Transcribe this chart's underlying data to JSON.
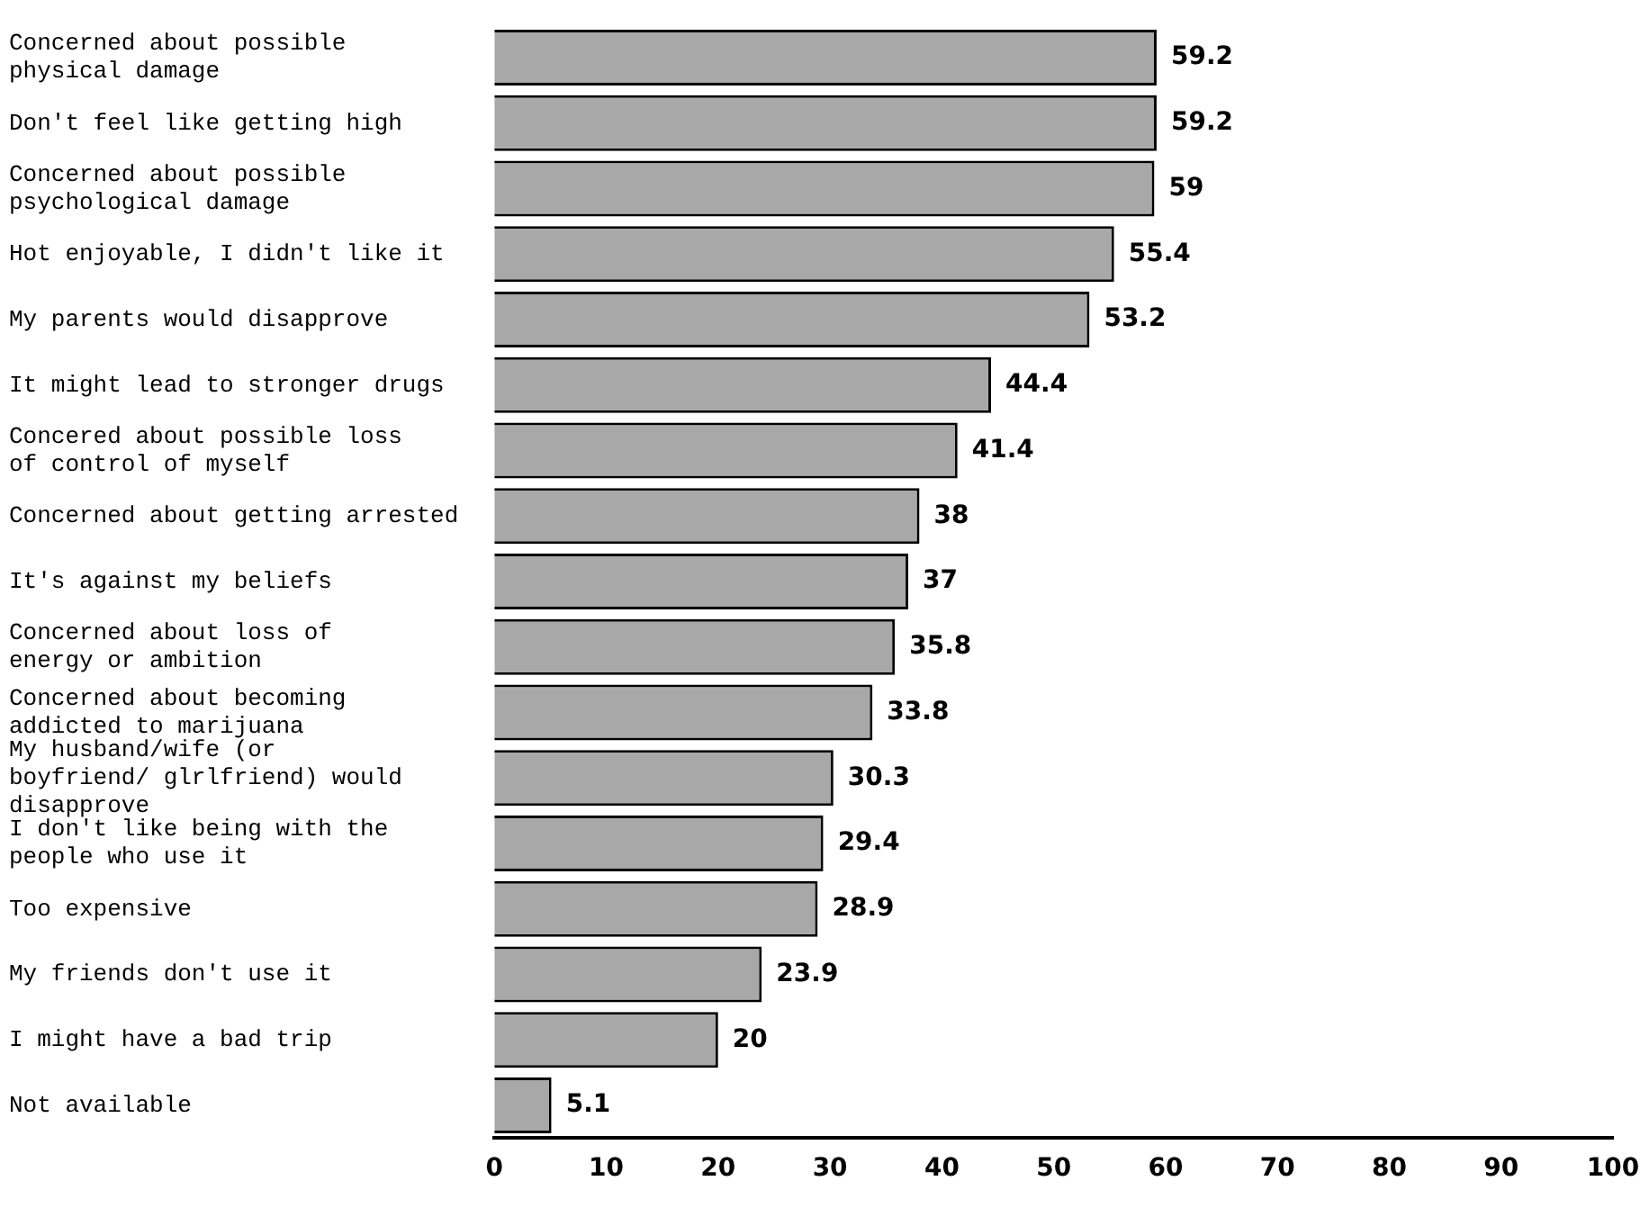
{
  "chart_data": {
    "type": "bar",
    "orientation": "horizontal",
    "categories": [
      "Concerned about possible physical damage",
      "Don't feel like getting high",
      "Concerned about possible psychological damage",
      "Hot enjoyable, I didn't like it",
      "My parents would disapprove",
      "It might lead to stronger drugs",
      "Concered about possible loss of control of myself",
      "Concerned about getting arrested",
      "It's against my beliefs",
      "Concerned about loss of energy or ambition",
      "Concerned about becoming addicted to marijuana",
      "My husband/wife (or boyfriend/ glrlfriend) would disapprove",
      "I don't like being with the people who use it",
      "Too expensive",
      "My friends don't use it",
      "I might have a bad trip",
      "Not available"
    ],
    "values": [
      59.2,
      59.2,
      59,
      55.4,
      53.2,
      44.4,
      41.4,
      38,
      37,
      35.8,
      33.8,
      30.3,
      29.4,
      28.9,
      23.9,
      20,
      5.1
    ],
    "color": "#a8a8a8",
    "data_labels": true,
    "grid": false,
    "legend": false,
    "xlim": [
      0,
      100
    ],
    "xticks": [
      0,
      10,
      20,
      30,
      40,
      50,
      60,
      70,
      80,
      90,
      100
    ]
  }
}
